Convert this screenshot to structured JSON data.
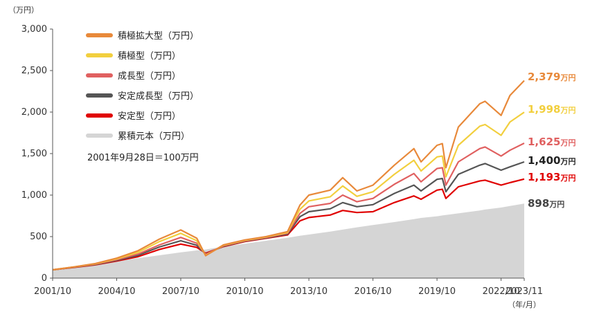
{
  "chart_data": {
    "type": "area",
    "y_unit_label": "（万円）",
    "x_unit_label": "（年/月）",
    "ylim": [
      0,
      3000
    ],
    "yticks": [
      "0",
      "500",
      "1,000",
      "1,500",
      "2,000",
      "2,500",
      "3,000"
    ],
    "xticks": [
      "2001/10",
      "2004/10",
      "2007/10",
      "2010/10",
      "2013/10",
      "2016/10",
      "2019/10",
      "2022/10",
      "2023/11"
    ],
    "note": "2001年9月28日＝100万円",
    "x": [
      "2001/10",
      "2002/10",
      "2003/10",
      "2004/10",
      "2005/10",
      "2006/10",
      "2007/10",
      "2008/07",
      "2008/12",
      "2009/10",
      "2010/10",
      "2011/10",
      "2012/10",
      "2013/05",
      "2013/10",
      "2014/10",
      "2015/05",
      "2016/01",
      "2016/10",
      "2017/10",
      "2018/09",
      "2019/01",
      "2019/10",
      "2020/01",
      "2020/03",
      "2020/10",
      "2021/10",
      "2022/01",
      "2022/10",
      "2023/03",
      "2023/11"
    ],
    "series": [
      {
        "name": "積極拡大型（万円）",
        "color": "#E8893A",
        "end_value": "2,379",
        "values": [
          100,
          135,
          175,
          240,
          330,
          470,
          580,
          480,
          270,
          400,
          460,
          500,
          560,
          880,
          1000,
          1060,
          1210,
          1050,
          1120,
          1360,
          1560,
          1400,
          1600,
          1620,
          1330,
          1820,
          2100,
          2130,
          1960,
          2200,
          2379
        ]
      },
      {
        "name": "積極型（万円）",
        "color": "#F2CF3E",
        "end_value": "1,998",
        "values": [
          100,
          135,
          172,
          232,
          310,
          440,
          540,
          450,
          275,
          395,
          455,
          495,
          550,
          830,
          930,
          980,
          1110,
          985,
          1040,
          1250,
          1420,
          1290,
          1460,
          1470,
          1220,
          1600,
          1830,
          1850,
          1720,
          1880,
          1998
        ]
      },
      {
        "name": "成長型（万円）",
        "color": "#E06060",
        "end_value": "1,625",
        "values": [
          100,
          133,
          168,
          222,
          290,
          400,
          490,
          420,
          285,
          390,
          450,
          490,
          540,
          780,
          860,
          900,
          1000,
          920,
          960,
          1130,
          1260,
          1160,
          1320,
          1330,
          1120,
          1400,
          1560,
          1580,
          1470,
          1540,
          1625
        ]
      },
      {
        "name": "安定成長型（万円）",
        "color": "#555555",
        "end_value": "1,400",
        "values": [
          100,
          131,
          164,
          214,
          275,
          375,
          450,
          395,
          290,
          385,
          445,
          485,
          530,
          740,
          800,
          835,
          910,
          860,
          885,
          1020,
          1120,
          1050,
          1190,
          1200,
          1040,
          1250,
          1360,
          1380,
          1300,
          1340,
          1400
        ]
      },
      {
        "name": "安定型（万円）",
        "color": "#E00000",
        "end_value": "1,193",
        "values": [
          100,
          129,
          160,
          206,
          258,
          345,
          410,
          370,
          300,
          380,
          440,
          480,
          520,
          690,
          730,
          760,
          815,
          790,
          800,
          910,
          990,
          950,
          1060,
          1070,
          960,
          1100,
          1170,
          1180,
          1120,
          1150,
          1193
        ]
      },
      {
        "name": "累積元本（万円）",
        "color": "#D5D5D5",
        "end_value": "898",
        "values": [
          100,
          135,
          170,
          205,
          240,
          275,
          310,
          333,
          345,
          380,
          415,
          450,
          485,
          510,
          525,
          560,
          584,
          612,
          640,
          675,
          710,
          725,
          745,
          755,
          760,
          780,
          815,
          826,
          850,
          868,
          898
        ]
      }
    ],
    "end_unit": "万円",
    "legend_position": "top-left",
    "grid": false
  }
}
